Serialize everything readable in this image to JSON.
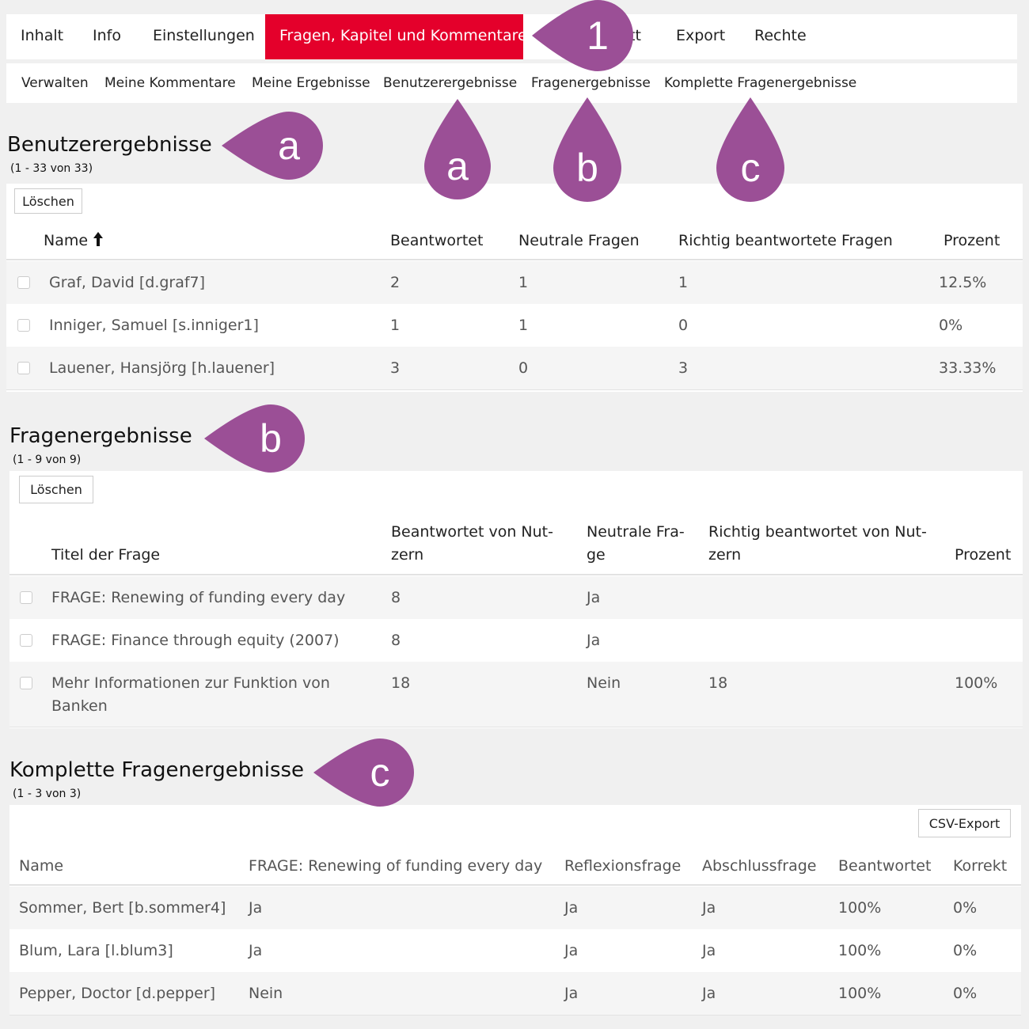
{
  "nav": {
    "tabs": [
      "Inhalt",
      "Info",
      "Einstellungen",
      "Fragen, Kapitel und Kommentare",
      "tt",
      "Export",
      "Rechte"
    ],
    "subtabs": [
      "Verwalten",
      "Meine Kommentare",
      "Meine Ergebnisse",
      "Benutzerergebnisse",
      "Fragenergebnisse",
      "Komplette Fragenergebnisse"
    ]
  },
  "callouts": [
    "1",
    "a",
    "a",
    "b",
    "c",
    "b",
    "c"
  ],
  "sections": [
    {
      "title": "Benutzerergebnisse",
      "count": "(1 - 33 von 33)",
      "button": "Löschen",
      "columns": [
        "Name",
        "Beantwortet",
        "Neutrale Fragen",
        "Richtig beantwortete Fragen",
        "Prozent"
      ],
      "rows": [
        [
          "Graf, David [d.graf7]",
          "2",
          "1",
          "1",
          "12.5%"
        ],
        [
          "Inniger, Samuel [s.inniger1]",
          "1",
          "1",
          "0",
          "0%"
        ],
        [
          "Lauener, Hansjörg [h.lauener]",
          "3",
          "0",
          "3",
          "33.33%"
        ]
      ]
    },
    {
      "title": "Fragenergebnisse",
      "count": "(1 - 9 von 9)",
      "button": "Löschen",
      "columns": [
        "Titel der Frage",
        "Beantwortet von Nut-\nzern",
        "Neutrale Fra-\nge",
        "Richtig beantwortet von Nut-\nzern",
        "Prozent"
      ],
      "rows": [
        [
          "FRAGE: Renewing of funding every day",
          "8",
          "Ja",
          "",
          ""
        ],
        [
          "FRAGE: Finance through equity (2007)",
          "8",
          "Ja",
          "",
          ""
        ],
        [
          "Mehr Informationen zur Funktion von Banken",
          "18",
          "Nein",
          "18",
          "100%"
        ]
      ]
    },
    {
      "title": "Komplette Fragenergebnisse",
      "count": "(1 - 3 von 3)",
      "button": "CSV-Export",
      "columns": [
        "Name",
        "FRAGE: Renewing of funding every day",
        "Reflexionsfrage",
        "Abschlussfrage",
        "Beantwortet",
        "Korrekt"
      ],
      "rows": [
        [
          "Sommer, Bert [b.sommer4]",
          "Ja",
          "Ja",
          "Ja",
          "100%",
          "0%"
        ],
        [
          "Blum, Lara [l.blum3]",
          "Ja",
          "Ja",
          "Ja",
          "100%",
          "0%"
        ],
        [
          "Pepper, Doctor [d.pepper]",
          "Nein",
          "Ja",
          "Ja",
          "100%",
          "0%"
        ]
      ]
    }
  ]
}
